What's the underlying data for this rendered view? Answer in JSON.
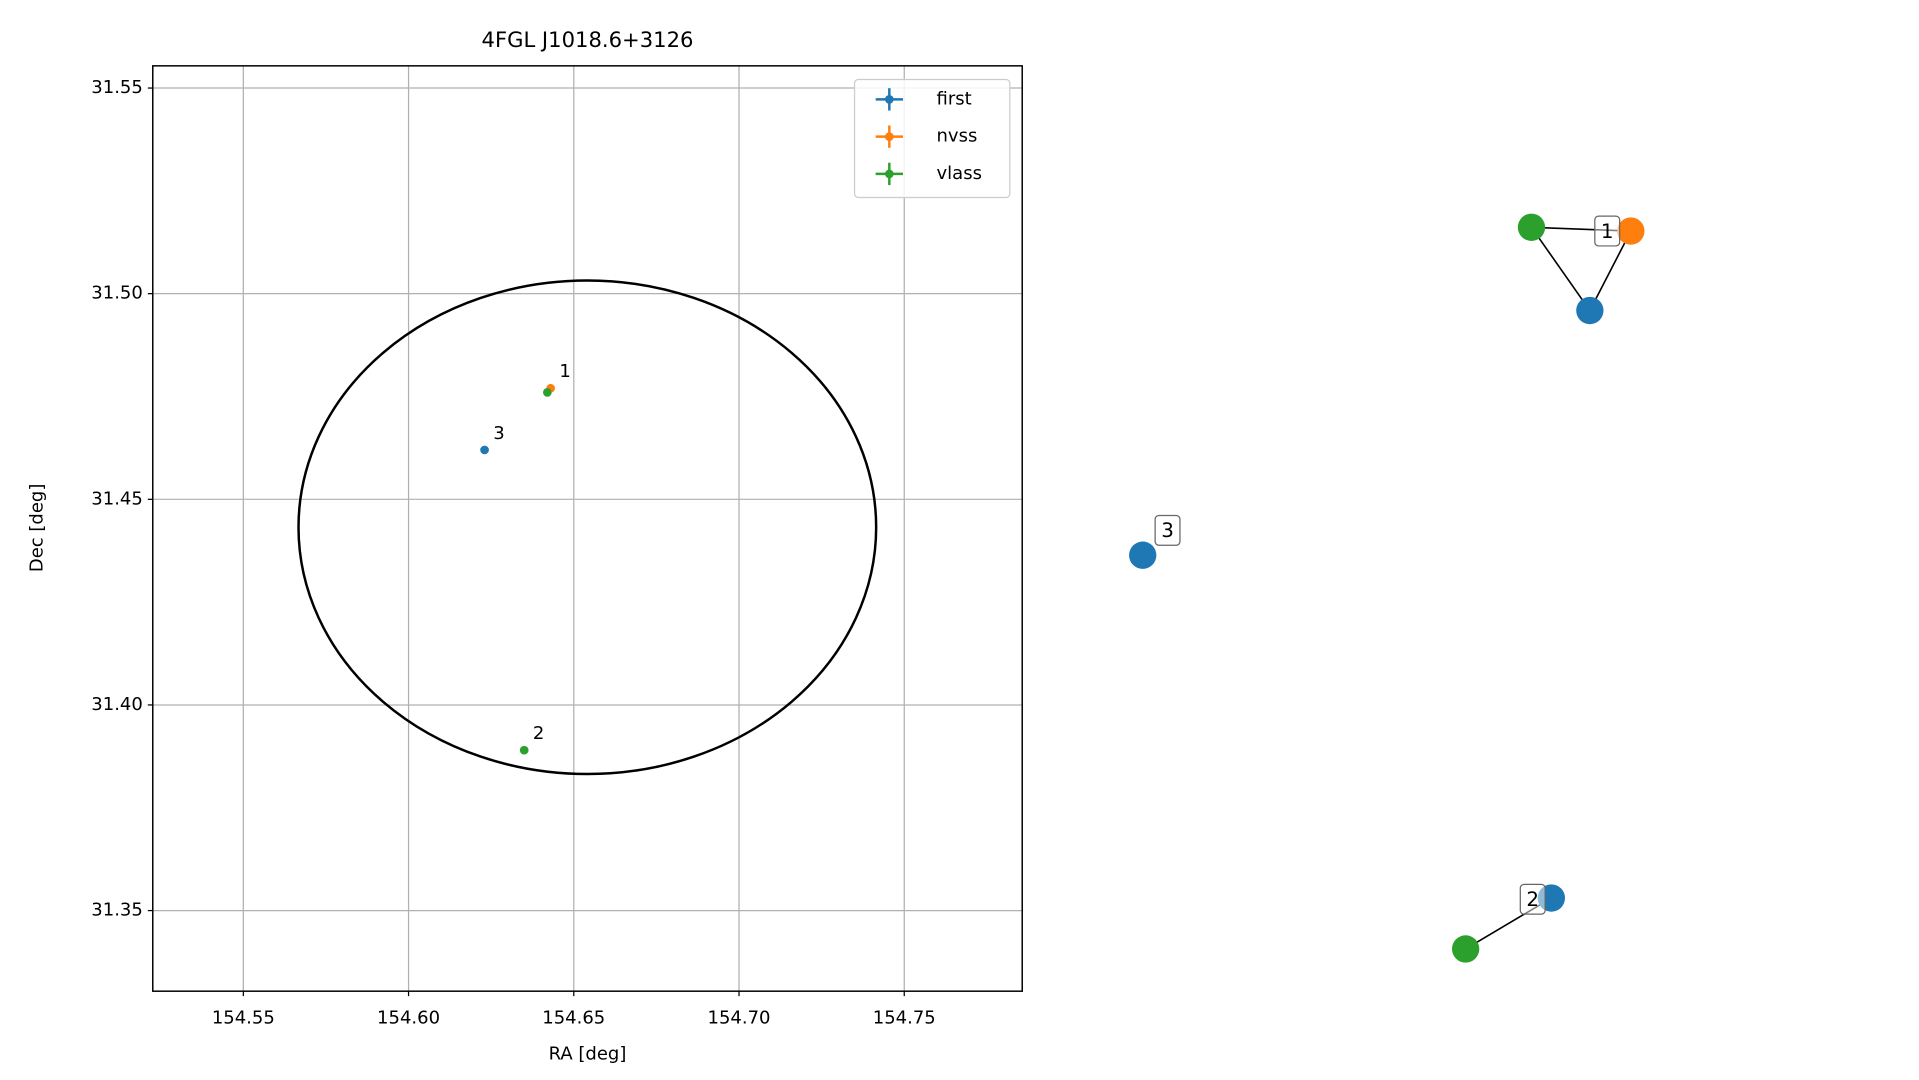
{
  "chart_data": {
    "type": "scatter",
    "title": "4FGL J1018.6+3126",
    "xlabel": "RA [deg]",
    "ylabel": "Dec [deg]",
    "xlim": [
      154.5226,
      154.7857
    ],
    "ylim": [
      31.3304,
      31.5554
    ],
    "xticks": [
      154.55,
      {
        "value": 154.6,
        "label": "154.60"
      },
      154.65,
      {
        "value": 154.7,
        "label": "154.70"
      },
      154.75
    ],
    "yticks": [
      31.35,
      {
        "value": 31.4,
        "label": "31.40"
      },
      31.45,
      {
        "value": 31.5,
        "label": "31.50"
      },
      31.55
    ],
    "grid": true,
    "legend": "upper right",
    "series": [
      {
        "name": "first",
        "color": "#1f77b4",
        "x": [
          154.623
        ],
        "values": [
          31.462
        ],
        "labels": [
          "3"
        ]
      },
      {
        "name": "nvss",
        "color": "#ff7f0e",
        "x": [
          154.643
        ],
        "values": [
          31.477
        ],
        "labels": [
          "1"
        ]
      },
      {
        "name": "vlass",
        "color": "#2ca02c",
        "x": [
          154.642,
          154.635
        ],
        "values": [
          31.476,
          31.389
        ],
        "labels": [
          null,
          "2"
        ]
      }
    ],
    "ellipse": {
      "x": 154.6541,
      "y": 31.4432,
      "x_radius": 0.0874,
      "y_radius": 0.06
    }
  },
  "graph": {
    "nodes": [
      {
        "color": "#2ca02c"
      },
      {
        "color": "#ff7f0e"
      },
      {
        "color": "#1f77b4"
      },
      {
        "color": "#1f77b4"
      },
      {
        "color": "#1f77b4"
      },
      {
        "color": "#2ca02c"
      }
    ],
    "edges": [
      [
        0,
        1
      ],
      [
        0,
        2
      ],
      [
        1,
        2
      ],
      [
        4,
        5
      ]
    ],
    "labels": [
      "1",
      "3",
      "2"
    ]
  }
}
